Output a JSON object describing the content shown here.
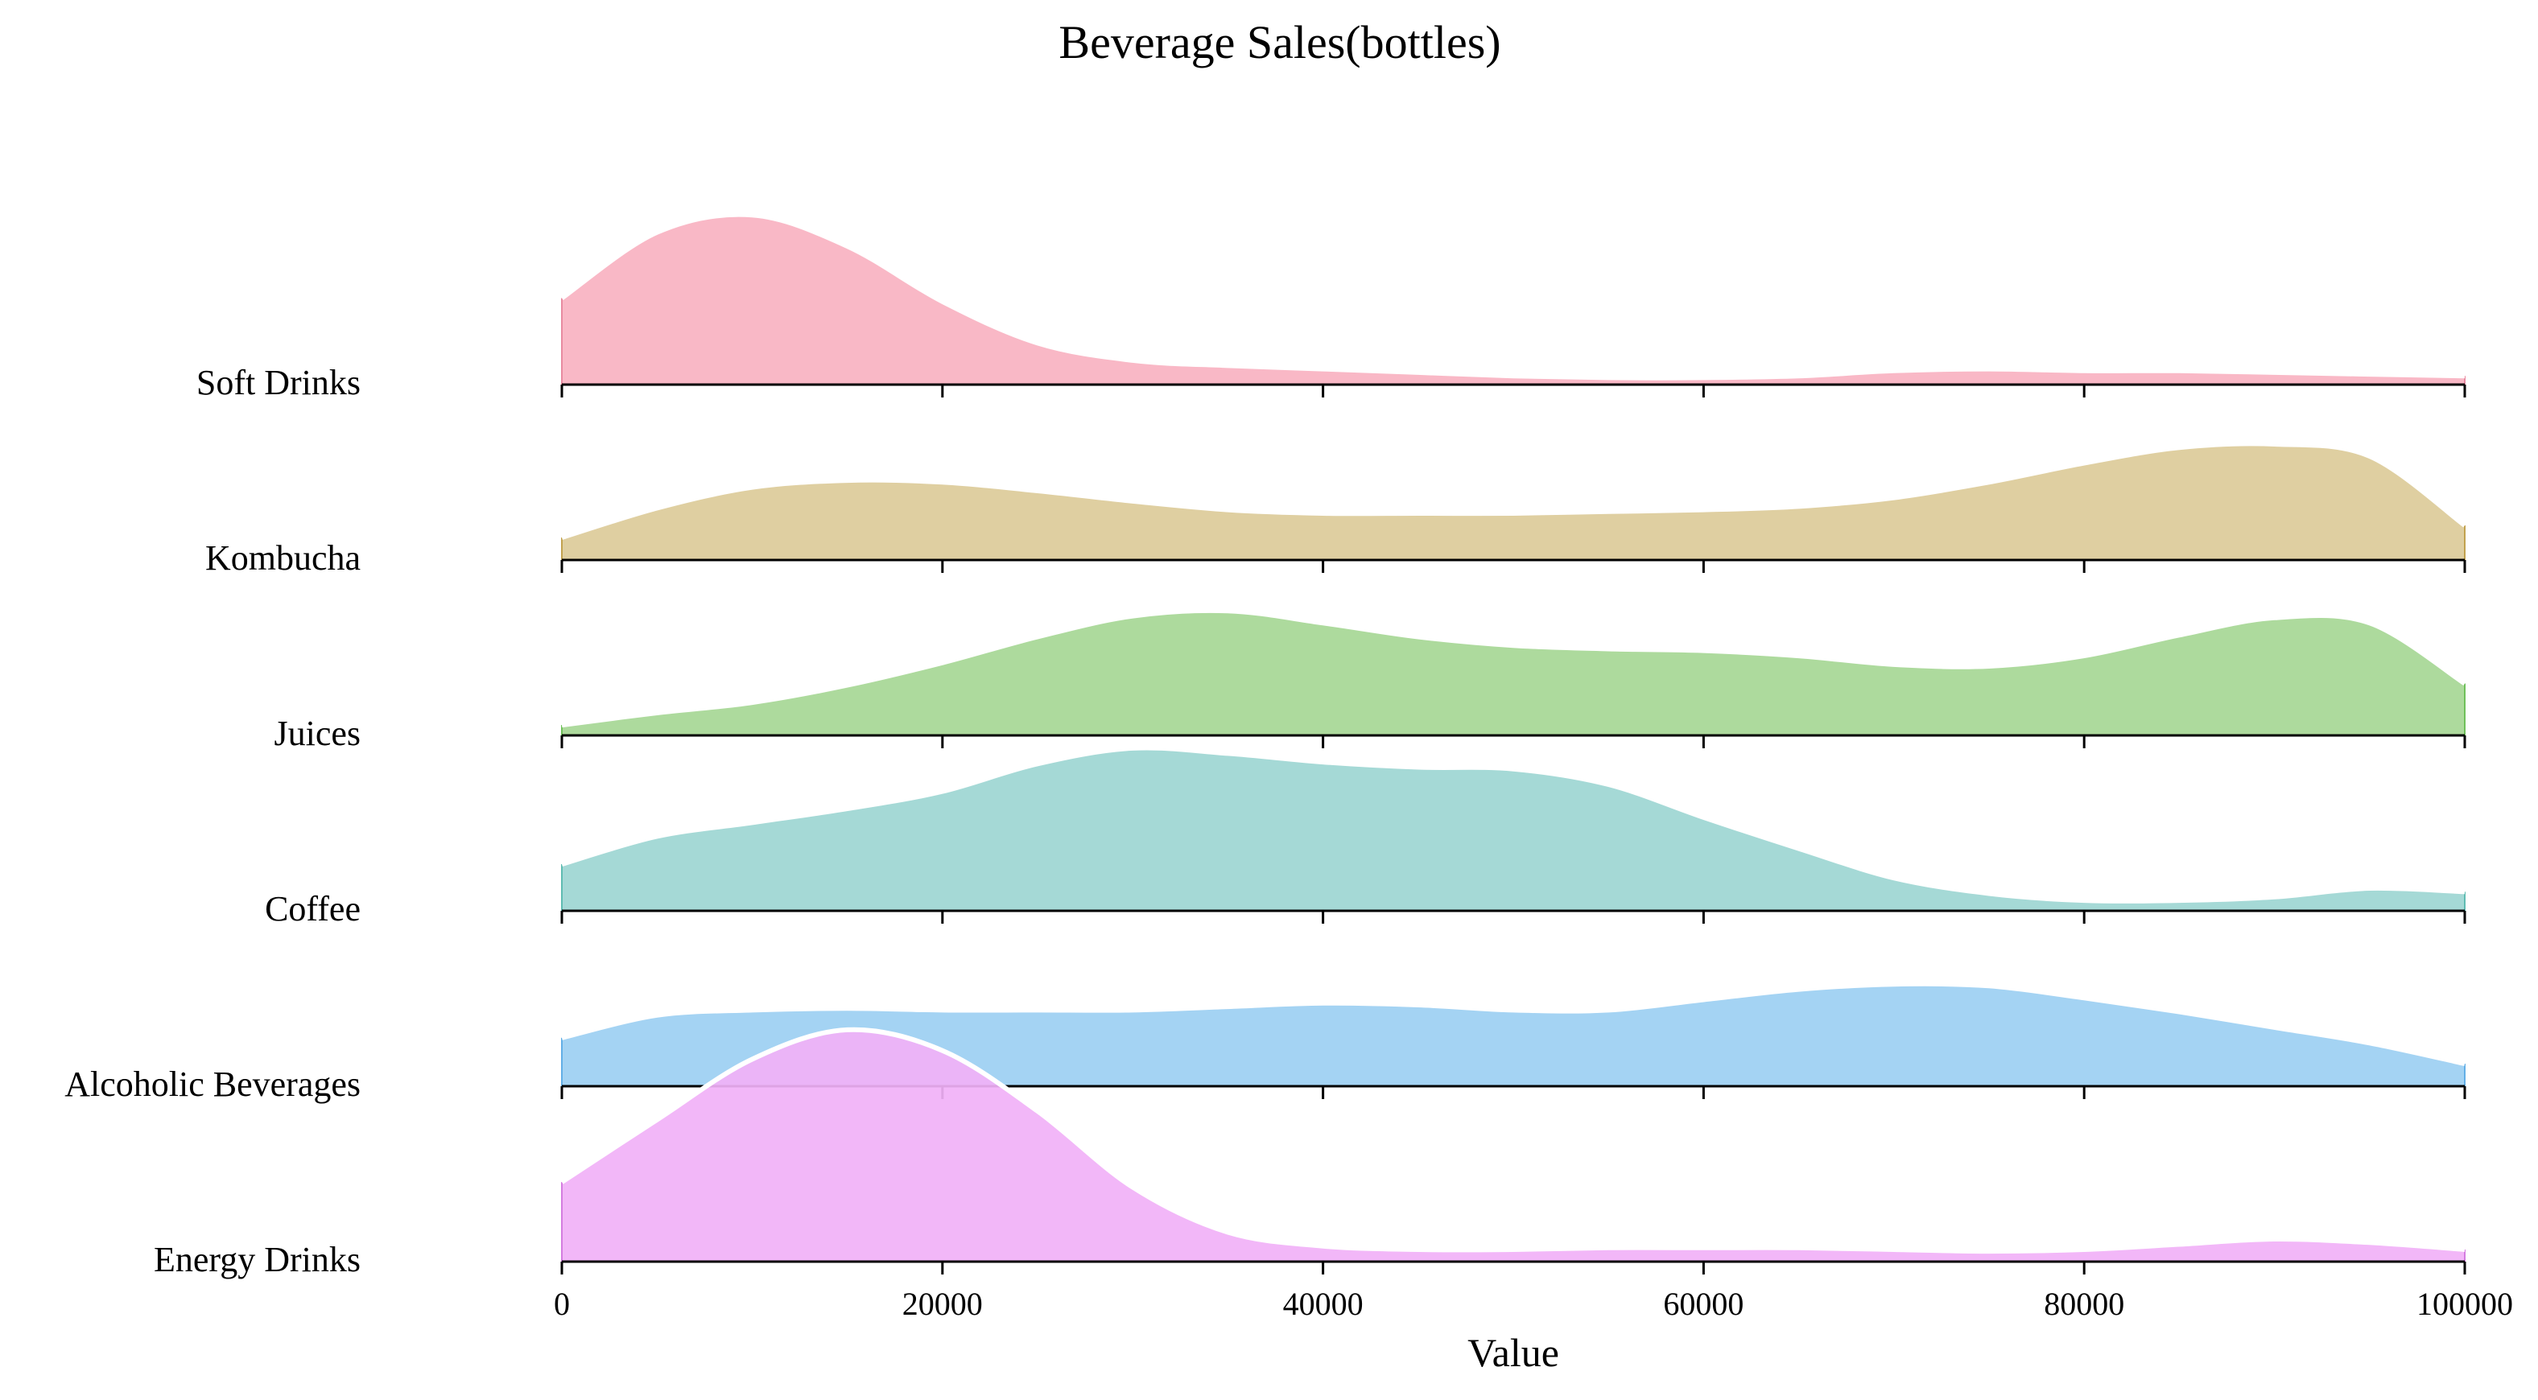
{
  "chart_data": {
    "type": "ridgeline",
    "title": "Beverage Sales(bottles)",
    "xlabel": "Value",
    "ylabel": "",
    "xlim": [
      0,
      100000
    ],
    "x_ticks": [
      0,
      20000,
      40000,
      60000,
      80000,
      100000
    ],
    "x_tick_labels": [
      "0",
      "20000",
      "40000",
      "60000",
      "80000",
      "100000"
    ],
    "grid": false,
    "legend": "none",
    "x": [
      0,
      5000,
      10000,
      15000,
      20000,
      25000,
      30000,
      35000,
      40000,
      45000,
      50000,
      55000,
      60000,
      65000,
      70000,
      75000,
      80000,
      85000,
      90000,
      95000,
      100000
    ],
    "series": [
      {
        "name": "Soft Drinks",
        "color": "#f8b2c1",
        "stroke": "#e88aa0",
        "density": [
          0.5,
          0.88,
          0.98,
          0.8,
          0.48,
          0.24,
          0.14,
          0.11,
          0.09,
          0.07,
          0.05,
          0.04,
          0.04,
          0.05,
          0.08,
          0.09,
          0.08,
          0.08,
          0.07,
          0.06,
          0.05
        ]
      },
      {
        "name": "Kombucha",
        "color": "#dccb99",
        "stroke": "#c2a24e",
        "density": [
          0.13,
          0.3,
          0.42,
          0.46,
          0.45,
          0.4,
          0.34,
          0.29,
          0.27,
          0.27,
          0.27,
          0.28,
          0.29,
          0.31,
          0.36,
          0.45,
          0.56,
          0.65,
          0.67,
          0.6,
          0.2
        ]
      },
      {
        "name": "Juices",
        "color": "#a6d795",
        "stroke": "#6fc05a",
        "density": [
          0.06,
          0.13,
          0.19,
          0.29,
          0.42,
          0.57,
          0.69,
          0.72,
          0.65,
          0.57,
          0.52,
          0.5,
          0.49,
          0.46,
          0.41,
          0.4,
          0.46,
          0.58,
          0.68,
          0.65,
          0.3
        ]
      },
      {
        "name": "Coffee",
        "color": "#9dd6d2",
        "stroke": "#5fbcb2",
        "density": [
          0.27,
          0.43,
          0.51,
          0.59,
          0.69,
          0.85,
          0.94,
          0.91,
          0.86,
          0.83,
          0.82,
          0.73,
          0.54,
          0.36,
          0.19,
          0.1,
          0.06,
          0.06,
          0.08,
          0.13,
          0.11
        ]
      },
      {
        "name": "Alcoholic Beverages",
        "color": "#9ccff2",
        "stroke": "#62afe6",
        "density": [
          0.28,
          0.41,
          0.44,
          0.45,
          0.44,
          0.44,
          0.44,
          0.46,
          0.48,
          0.47,
          0.44,
          0.44,
          0.5,
          0.56,
          0.59,
          0.58,
          0.51,
          0.43,
          0.34,
          0.25,
          0.13
        ]
      },
      {
        "name": "Energy Drinks",
        "color": "#f1b1f7",
        "stroke": "#d47ce0",
        "density": [
          0.46,
          0.82,
          1.17,
          1.34,
          1.22,
          0.87,
          0.43,
          0.17,
          0.09,
          0.07,
          0.07,
          0.08,
          0.08,
          0.08,
          0.07,
          0.06,
          0.07,
          0.1,
          0.13,
          0.11,
          0.07
        ]
      }
    ]
  }
}
